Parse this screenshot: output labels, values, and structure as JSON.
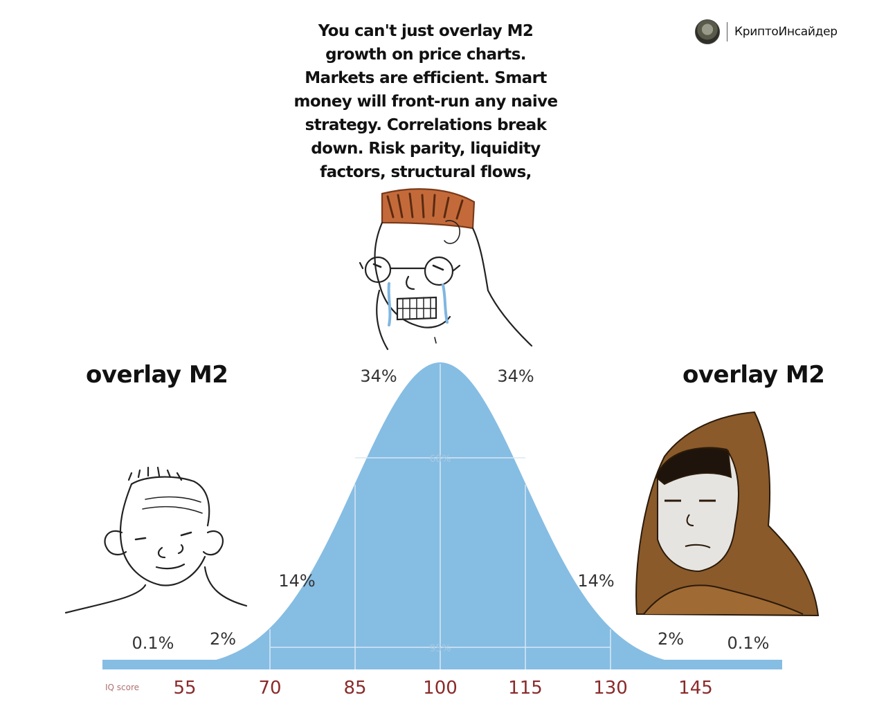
{
  "meme": {
    "top_text_lines": [
      "You can't just overlay M2",
      "growth on price charts.",
      "Markets are efficient. Smart",
      "money will front-run any naive",
      "strategy. Correlations break",
      "down. Risk parity, liquidity",
      "factors, structural flows,"
    ],
    "left_label": "overlay M2",
    "right_label": "overlay M2"
  },
  "brand": {
    "name": "КриптоИнсайдер",
    "avatar_icon": "profile-avatar-icon"
  },
  "characters": [
    {
      "role": "low-iq",
      "icon": "wojak-simple-face-icon"
    },
    {
      "role": "mid-iq",
      "icon": "crying-wojak-glasses-icon"
    },
    {
      "role": "high-iq",
      "icon": "hooded-figure-icon"
    }
  ],
  "chart_data": {
    "type": "area",
    "x_label": "IQ score",
    "x_ticks": [
      55,
      70,
      85,
      100,
      115,
      130,
      145
    ],
    "mean": 100,
    "sd": 15,
    "band_labels": [
      "0.1%",
      "2%",
      "14%",
      "34%",
      "34%",
      "14%",
      "2%",
      "0.1%"
    ],
    "range_labels": [
      {
        "text": "68%",
        "from": 85,
        "to": 115
      },
      {
        "text": "95%",
        "from": 70,
        "to": 130
      }
    ],
    "colors": {
      "fill": "#86bde3",
      "tick_text": "#8a2a2a",
      "grid": "#d9e8f3"
    }
  }
}
